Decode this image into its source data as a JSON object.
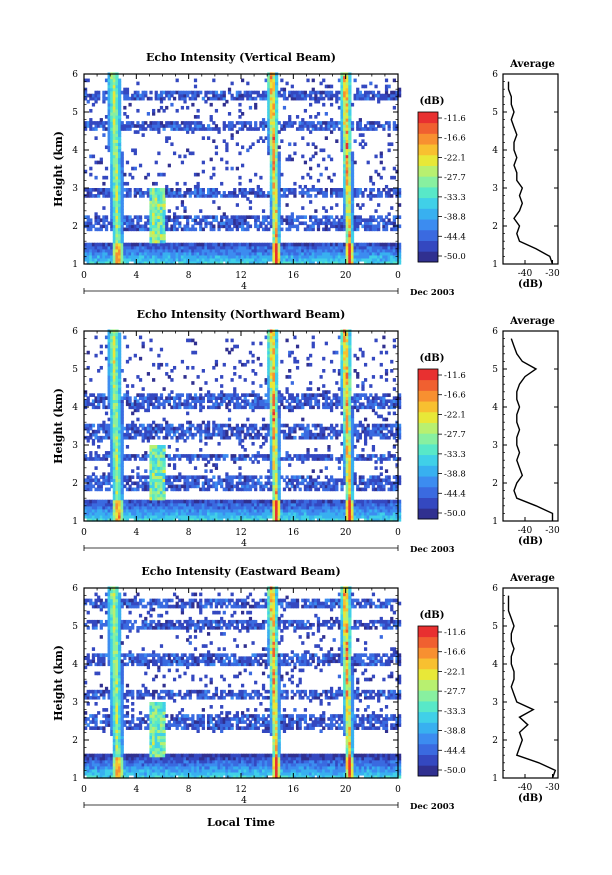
{
  "footer": {
    "date_label": "Dec 2003",
    "xlabel": "Local Time"
  },
  "colorbar": {
    "unit": "(dB)",
    "ticks": [
      "-11.6",
      "-16.6",
      "-22.1",
      "-27.7",
      "-33.3",
      "-38.8",
      "-44.4",
      "-50.0"
    ],
    "colors": [
      "#303090",
      "#3448c0",
      "#3a6ae0",
      "#3c8cf0",
      "#38b0f0",
      "#40d0e8",
      "#58e8c8",
      "#88f0a0",
      "#b8f070",
      "#e8e838",
      "#f8c030",
      "#f89030",
      "#f06030",
      "#e83030"
    ]
  },
  "panels": [
    {
      "title": "Echo Intensity (Vertical Beam)",
      "ylabel": "Height (km)",
      "avg_title": "Average",
      "avg_xlabel": "(dB)",
      "avg_xticks": [
        "-40",
        "-30"
      ],
      "avg_yticks": [
        "1",
        "2",
        "3",
        "4",
        "5",
        "6"
      ]
    },
    {
      "title": "Echo Intensity (Northward Beam)",
      "ylabel": "Height (km)",
      "avg_title": "Average",
      "avg_xlabel": "(dB)",
      "avg_xticks": [
        "-40",
        "-30"
      ],
      "avg_yticks": [
        "1",
        "2",
        "3",
        "4",
        "5",
        "6"
      ]
    },
    {
      "title": "Echo Intensity (Eastward Beam)",
      "ylabel": "Height (km)",
      "avg_title": "Average",
      "avg_xlabel": "(dB)",
      "avg_xticks": [
        "-40",
        "-30"
      ],
      "avg_yticks": [
        "1",
        "2",
        "3",
        "4",
        "5",
        "6"
      ]
    }
  ],
  "chart_data": {
    "type": "heatmap",
    "x_ticks": [
      "0",
      "4",
      "8",
      "12",
      "16",
      "20",
      "0"
    ],
    "y_ticks": [
      "1",
      "2",
      "3",
      "4",
      "5",
      "6"
    ],
    "date_axis_label": "4",
    "xlim": [
      0,
      24
    ],
    "ylim": [
      1,
      6
    ],
    "zrange_db": [
      -50.0,
      -11.6
    ],
    "avg_xlim": [
      -48,
      -28
    ],
    "avg_profiles": [
      {
        "height": [
          1.0,
          1.2,
          1.4,
          1.6,
          1.8,
          2.0,
          2.2,
          2.4,
          2.6,
          2.8,
          3.0,
          3.2,
          3.4,
          3.6,
          3.8,
          4.0,
          4.2,
          4.4,
          4.6,
          4.8,
          5.0,
          5.2,
          5.4,
          5.6,
          5.8
        ],
        "db": [
          -30,
          -31,
          -36,
          -42,
          -43,
          -42,
          -44,
          -42,
          -41,
          -42,
          -41,
          -43,
          -43,
          -44,
          -43,
          -44,
          -44,
          -43,
          -44,
          -45,
          -44,
          -45,
          -45,
          -46,
          -46
        ]
      },
      {
        "height": [
          1.0,
          1.2,
          1.4,
          1.6,
          1.8,
          2.0,
          2.2,
          2.4,
          2.6,
          2.8,
          3.0,
          3.2,
          3.4,
          3.6,
          3.8,
          4.0,
          4.2,
          4.4,
          4.6,
          4.8,
          5.0,
          5.2,
          5.4,
          5.6,
          5.8
        ],
        "db": [
          -30,
          -30,
          -36,
          -43,
          -44,
          -43,
          -41,
          -42,
          -43,
          -42,
          -43,
          -43,
          -42,
          -43,
          -43,
          -42,
          -43,
          -43,
          -42,
          -40,
          -36,
          -41,
          -43,
          -44,
          -45
        ]
      },
      {
        "height": [
          1.0,
          1.2,
          1.4,
          1.6,
          1.8,
          2.0,
          2.2,
          2.4,
          2.6,
          2.8,
          3.0,
          3.2,
          3.4,
          3.6,
          3.8,
          4.0,
          4.2,
          4.4,
          4.6,
          4.8,
          5.0,
          5.2,
          5.4,
          5.6,
          5.8
        ],
        "db": [
          -30,
          -29,
          -35,
          -43,
          -42,
          -41,
          -42,
          -39,
          -42,
          -37,
          -43,
          -44,
          -45,
          -44,
          -44,
          -45,
          -45,
          -44,
          -45,
          -45,
          -44,
          -45,
          -46,
          -46,
          -46
        ]
      }
    ]
  }
}
